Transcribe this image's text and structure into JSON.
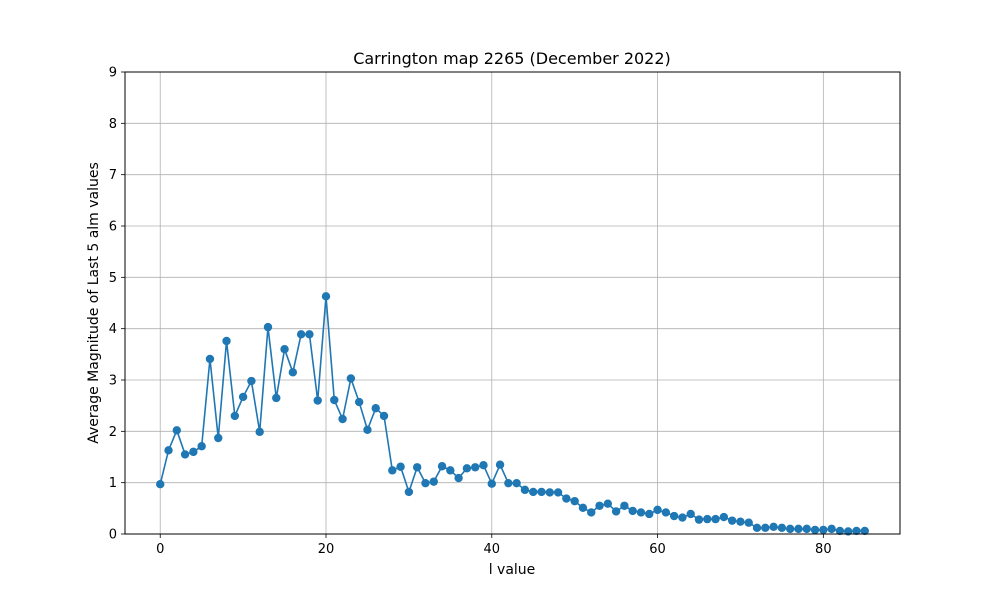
{
  "chart_data": {
    "type": "line",
    "title": "Carrington map 2265 (December 2022)",
    "xlabel": "l value",
    "ylabel": "Average Magnitude of Last 5 alm values",
    "xlim": [
      -4.25,
      89.25
    ],
    "ylim": [
      0,
      9
    ],
    "xticks": [
      0,
      20,
      40,
      60,
      80
    ],
    "yticks": [
      0,
      1,
      2,
      3,
      4,
      5,
      6,
      7,
      8,
      9
    ],
    "grid": true,
    "marker": "circle",
    "color": "#1f77b4",
    "x": [
      0,
      1,
      2,
      3,
      4,
      5,
      6,
      7,
      8,
      9,
      10,
      11,
      12,
      13,
      14,
      15,
      16,
      17,
      18,
      19,
      20,
      21,
      22,
      23,
      24,
      25,
      26,
      27,
      28,
      29,
      30,
      31,
      32,
      33,
      34,
      35,
      36,
      37,
      38,
      39,
      40,
      41,
      42,
      43,
      44,
      45,
      46,
      47,
      48,
      49,
      50,
      51,
      52,
      53,
      54,
      55,
      56,
      57,
      58,
      59,
      60,
      61,
      62,
      63,
      64,
      65,
      66,
      67,
      68,
      69,
      70,
      71,
      72,
      73,
      74,
      75,
      76,
      77,
      78,
      79,
      80,
      81,
      82,
      83,
      84,
      85
    ],
    "y": [
      0.97,
      1.63,
      2.02,
      1.55,
      1.6,
      1.71,
      3.41,
      1.87,
      3.76,
      2.3,
      2.67,
      2.98,
      1.99,
      4.03,
      2.65,
      3.6,
      3.15,
      3.89,
      3.89,
      2.6,
      4.63,
      2.61,
      2.24,
      3.03,
      2.57,
      2.03,
      2.45,
      2.3,
      1.24,
      1.31,
      0.82,
      1.3,
      0.99,
      1.02,
      1.32,
      1.24,
      1.09,
      1.28,
      1.3,
      1.34,
      0.98,
      1.35,
      0.99,
      0.99,
      0.86,
      0.82,
      0.82,
      0.81,
      0.81,
      0.69,
      0.64,
      0.51,
      0.42,
      0.55,
      0.59,
      0.44,
      0.55,
      0.45,
      0.42,
      0.39,
      0.47,
      0.42,
      0.35,
      0.32,
      0.39,
      0.28,
      0.29,
      0.29,
      0.33,
      0.26,
      0.24,
      0.22,
      0.12,
      0.12,
      0.14,
      0.12,
      0.1,
      0.1,
      0.1,
      0.08,
      0.08,
      0.1,
      0.06,
      0.05,
      0.06,
      0.06
    ]
  }
}
